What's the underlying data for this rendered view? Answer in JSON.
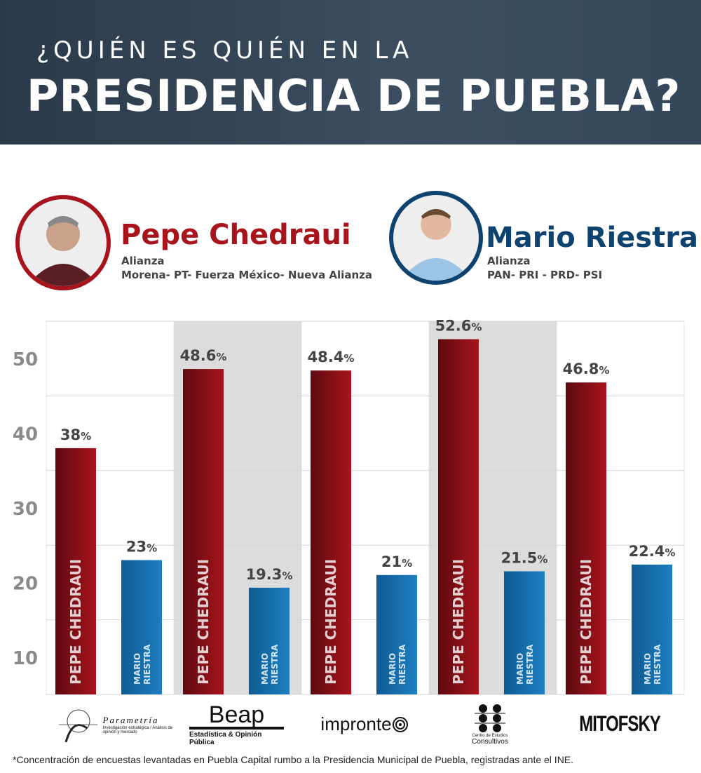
{
  "header": {
    "line1": "¿QUIÉN ES QUIÉN EN LA",
    "line2": "PRESIDENCIA DE PUEBLA?"
  },
  "candidates": [
    {
      "name": "Pepe Chedraui",
      "label": "Alianza",
      "parties": "Morena- PT- Fuerza México- Nueva Alianza",
      "color": "#a8141c"
    },
    {
      "name": "Mario Riestra",
      "label": "Alianza",
      "parties": "PAN- PRI - PRD- PSI",
      "color": "#0e4370"
    }
  ],
  "chart_data": {
    "type": "bar",
    "categories": [
      "Parametría",
      "Beap",
      "Impronte",
      "Centro de Estudios Consultivos",
      "Mitofsky"
    ],
    "series": [
      {
        "name": "PEPE CHEDRAUI",
        "values": [
          38,
          48.6,
          48.4,
          52.6,
          46.8
        ],
        "color": "#a8141c"
      },
      {
        "name": "MARIO RIESTRA",
        "values": [
          23,
          19.3,
          21,
          21.5,
          22.4
        ],
        "color": "#1f7fc0"
      }
    ],
    "value_labels": [
      [
        "38",
        "23"
      ],
      [
        "48.6",
        "19.3"
      ],
      [
        "48.4",
        "21"
      ],
      [
        "52.6",
        "21.5"
      ],
      [
        "46.8",
        "22.4"
      ]
    ],
    "value_suffix": "%",
    "yticks": [
      10,
      20,
      30,
      40,
      50
    ],
    "ylim": [
      5,
      55
    ],
    "grid": true
  },
  "logos": [
    {
      "name": "Parametría",
      "sub": "Investigación estratégica / Análisis de opinión y mercado"
    },
    {
      "name": "Beap",
      "sub": "Estadística & Opinión Pública"
    },
    {
      "name": "impronte",
      "sub": ""
    },
    {
      "name": "Consultivos",
      "sub": "Centro de Estudios"
    },
    {
      "name": "MITOFSKY",
      "sub": ""
    }
  ],
  "footnote": "*Concentración de encuestas levantadas en Puebla Capital rumbo a la Presidencia Municipal de Puebla, registradas ante el INE."
}
